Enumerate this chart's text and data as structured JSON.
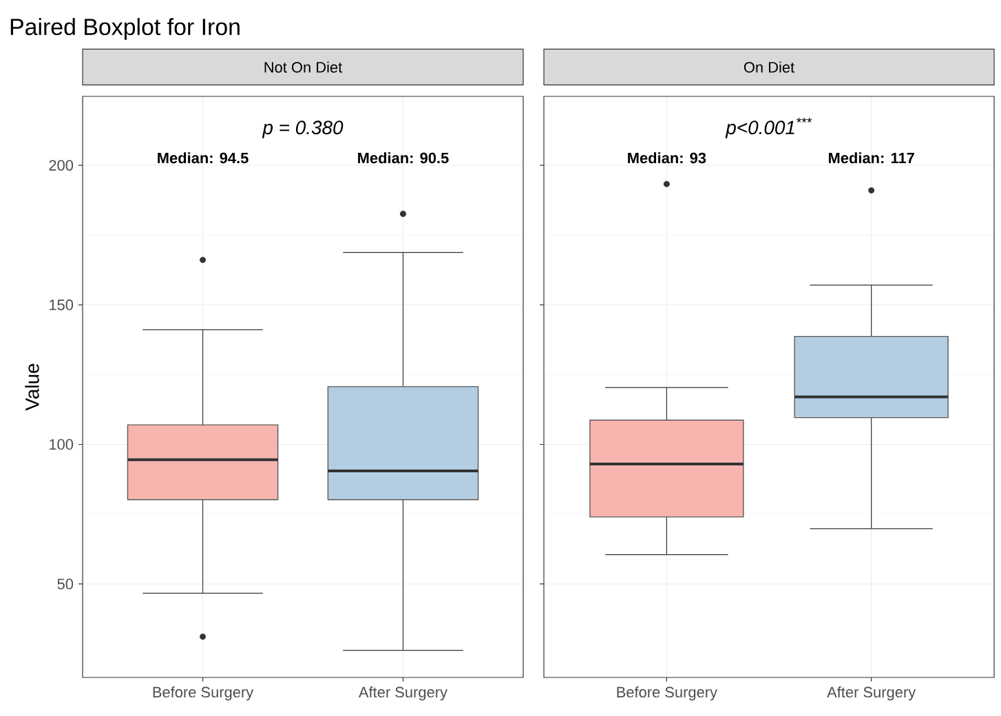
{
  "chart_data": [
    {
      "type": "box",
      "title": "Paired Boxplot for Iron",
      "subtitle": "Not On Diet",
      "ylabel": "Value",
      "categories": [
        "Before Surgery",
        "After Surgery"
      ],
      "colors": [
        "#f8b4ae",
        "#b3cde3"
      ],
      "boxes": [
        {
          "low": 46.7,
          "q1": 80.2,
          "median": 94.5,
          "q3": 107,
          "high": 141.1,
          "outliers": [
            166.1,
            31.1
          ]
        },
        {
          "low": 26.2,
          "q1": 80.2,
          "median": 90.5,
          "q3": 120.7,
          "high": 168.8,
          "outliers": [
            182.6
          ]
        }
      ],
      "ylim": [
        16.5,
        224.7
      ],
      "yticks": [
        50,
        100,
        150,
        200
      ],
      "grid": true,
      "annotations": [
        "p = 0.380",
        "Median: 94.5",
        "Median: 90.5"
      ]
    },
    {
      "type": "box",
      "subtitle": "On Diet",
      "categories": [
        "Before Surgery",
        "After Surgery"
      ],
      "colors": [
        "#f8b4ae",
        "#b3cde3"
      ],
      "boxes": [
        {
          "low": 60.5,
          "q1": 74.0,
          "median": 93,
          "q3": 108.7,
          "high": 120.4,
          "outliers": [
            193.3
          ]
        },
        {
          "low": 69.8,
          "q1": 109.6,
          "median": 117,
          "q3": 138.7,
          "high": 157.1,
          "outliers": [
            191.0
          ]
        }
      ],
      "ylim": [
        16.5,
        224.7
      ],
      "yticks": [
        50,
        100,
        150,
        200
      ],
      "grid": true,
      "tick_labels": "x",
      "annotations": [
        "p<0.001$^{***}$",
        "Median: 93",
        "Median: 117"
      ]
    }
  ]
}
